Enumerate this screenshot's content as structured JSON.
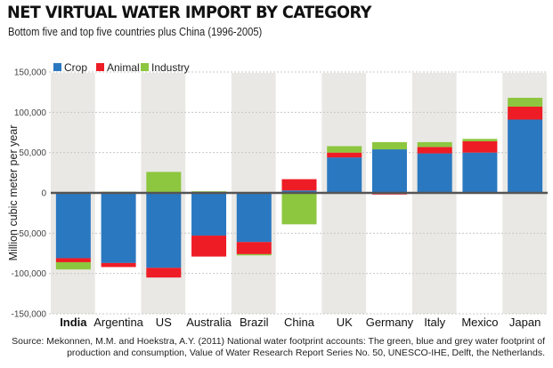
{
  "title": "NET VIRTUAL WATER IMPORT BY CATEGORY",
  "subtitle": "Bottom five and top five countries plus China (1996-2005)",
  "source_lines": [
    "Source: Mekonnen, M.M. and Hoekstra, A.Y. (2011) National water footprint accounts: The green, blue and grey water footprint of",
    "production and consumption, Value of Water Research Report Series No. 50, UNESCO-IHE, Delft, the Netherlands."
  ],
  "colors": {
    "Crop": "#2a78c0",
    "Animal": "#ee1c25",
    "Industry": "#8dc63f",
    "shade": "#e9e8e4",
    "zero_line": "#555555",
    "grid": "#c8c8c8"
  },
  "chart_data": {
    "type": "bar",
    "stacked": true,
    "title": "NET VIRTUAL WATER IMPORT BY CATEGORY",
    "subtitle": "Bottom five and top five countries plus China (1996-2005)",
    "xlabel": "",
    "ylabel": "Million cubic meter per year",
    "ylim": [
      -150000,
      150000
    ],
    "yticks": [
      150000,
      100000,
      50000,
      0,
      -50000,
      -100000,
      -150000
    ],
    "ytick_labels": [
      "150,000",
      "100,000",
      "50,000",
      "0",
      "-50,000",
      "-100,000",
      "-150,000"
    ],
    "grid": true,
    "legend": {
      "position": "top-left",
      "entries": [
        "Crop",
        "Animal",
        "Industry"
      ]
    },
    "categories": [
      "India",
      "Argentina",
      "US",
      "Australia",
      "Brazil",
      "China",
      "UK",
      "Germany",
      "Italy",
      "Mexico",
      "Japan"
    ],
    "highlighted_category": "India",
    "shaded_categories": [
      "India",
      "US",
      "Brazil",
      "UK",
      "Italy",
      "Japan"
    ],
    "series": [
      {
        "name": "Crop",
        "values": [
          -81000,
          -87000,
          -93000,
          -53000,
          -61000,
          3000,
          44000,
          54000,
          49000,
          50000,
          91000
        ]
      },
      {
        "name": "Animal",
        "values": [
          -5000,
          -5000,
          -12000,
          -26000,
          -15000,
          14000,
          6000,
          -2000,
          8000,
          14000,
          16000
        ]
      },
      {
        "name": "Industry",
        "values": [
          -9000,
          1500,
          26000,
          2000,
          -1500,
          -39000,
          8000,
          9000,
          6000,
          3000,
          11000
        ]
      }
    ]
  }
}
